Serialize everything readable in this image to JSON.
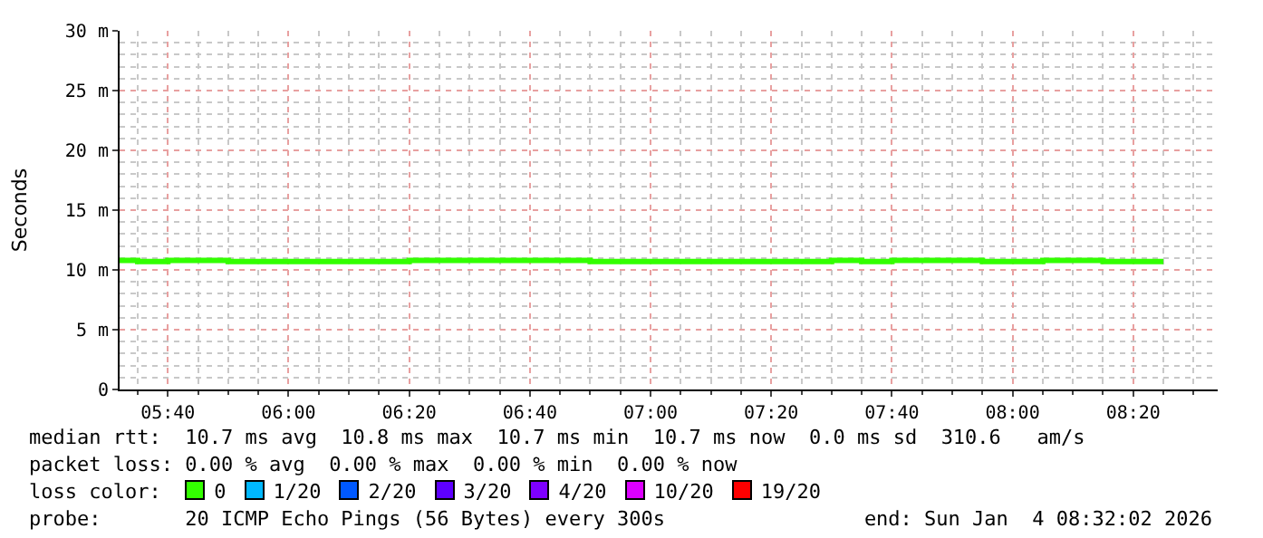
{
  "chart_data": {
    "type": "step",
    "ylabel": "Seconds",
    "legend_title": "loss color:",
    "x": [
      "2026-01-04T05:32",
      "2026-01-04T05:35",
      "2026-01-04T05:40",
      "2026-01-04T05:50",
      "2026-01-04T06:20",
      "2026-01-04T06:50",
      "2026-01-04T07:30",
      "2026-01-04T07:35",
      "2026-01-04T07:40",
      "2026-01-04T07:55",
      "2026-01-04T08:05",
      "2026-01-04T08:15",
      "2026-01-04T08:25"
    ],
    "series": [
      {
        "name": "0",
        "color": "#33ff00",
        "values": [
          10.8,
          10.7,
          10.8,
          10.7,
          10.8,
          10.7,
          10.8,
          10.7,
          10.8,
          10.7,
          10.8,
          10.7,
          10.7
        ]
      },
      {
        "name": "1/20",
        "color": "#00b8ff",
        "values": [
          null,
          null,
          null,
          null,
          null,
          null,
          null,
          null,
          null,
          null,
          null,
          null,
          null
        ]
      },
      {
        "name": "2/20",
        "color": "#0059ff",
        "values": [
          null,
          null,
          null,
          null,
          null,
          null,
          null,
          null,
          null,
          null,
          null,
          null,
          null
        ]
      },
      {
        "name": "3/20",
        "color": "#5e00ff",
        "values": [
          null,
          null,
          null,
          null,
          null,
          null,
          null,
          null,
          null,
          null,
          null,
          null,
          null
        ]
      },
      {
        "name": "4/20",
        "color": "#7e00ff",
        "values": [
          null,
          null,
          null,
          null,
          null,
          null,
          null,
          null,
          null,
          null,
          null,
          null,
          null
        ]
      },
      {
        "name": "10/20",
        "color": "#dd00ff",
        "values": [
          null,
          null,
          null,
          null,
          null,
          null,
          null,
          null,
          null,
          null,
          null,
          null,
          null
        ]
      },
      {
        "name": "19/20",
        "color": "#ff0000",
        "values": [
          null,
          null,
          null,
          null,
          null,
          null,
          null,
          null,
          null,
          null,
          null,
          null,
          null
        ]
      }
    ],
    "xlim": [
      "2026-01-04T05:32",
      "2026-01-04T08:34"
    ],
    "xticks": [
      {
        "value": "2026-01-04T05:40",
        "label": "05:40"
      },
      {
        "value": "2026-01-04T06:00",
        "label": "06:00"
      },
      {
        "value": "2026-01-04T06:20",
        "label": "06:20"
      },
      {
        "value": "2026-01-04T06:40",
        "label": "06:40"
      },
      {
        "value": "2026-01-04T07:00",
        "label": "07:00"
      },
      {
        "value": "2026-01-04T07:20",
        "label": "07:20"
      },
      {
        "value": "2026-01-04T07:40",
        "label": "07:40"
      },
      {
        "value": "2026-01-04T08:00",
        "label": "08:00"
      },
      {
        "value": "2026-01-04T08:20",
        "label": "08:20"
      }
    ],
    "ylim": [
      0,
      30
    ],
    "yticks": [
      0,
      {
        "value": 5,
        "label": "5 m"
      },
      {
        "value": 10,
        "label": "10 m"
      },
      {
        "value": 15,
        "label": "15 m"
      },
      {
        "value": 20,
        "label": "20 m"
      },
      {
        "value": 25,
        "label": "25 m"
      },
      {
        "value": 30,
        "label": "30 m"
      }
    ],
    "grid": true,
    "legend": "bottom",
    "line_style": "solid",
    "annotations": [
      "median rtt:  10.7 ms avg  10.8 ms max  10.7 ms min  10.7 ms now  0.0 ms sd  310.6   am/s",
      "packet loss: 0.00 % avg  0.00 % max  0.00 % min  0.00 % now",
      "probe:       20 ICMP Echo Pings (56 Bytes) every 300s",
      "end: Sun Jan  4 08:32:02 2026"
    ]
  }
}
